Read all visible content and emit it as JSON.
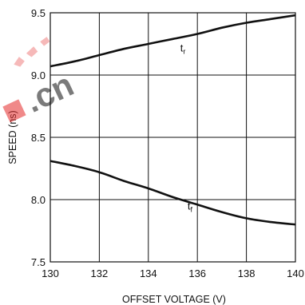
{
  "chart_data": {
    "type": "line",
    "title": "",
    "xlabel": "OFFSET VOLTAGE (V)",
    "ylabel": "SPEED (ns)",
    "xlim": [
      130,
      140
    ],
    "ylim": [
      7.5,
      9.5
    ],
    "x_ticks": [
      "130",
      "132",
      "134",
      "136",
      "138",
      "140"
    ],
    "y_ticks": [
      "7.5",
      "8.0",
      "8.5",
      "9.0",
      "9.5"
    ],
    "grid": true,
    "series": [
      {
        "name": "tr",
        "label_main": "t",
        "label_sub": "r",
        "label_at": [
          135.3,
          9.19
        ],
        "points": [
          [
            130,
            9.07
          ],
          [
            131,
            9.11
          ],
          [
            132,
            9.16
          ],
          [
            133,
            9.21
          ],
          [
            134,
            9.25
          ],
          [
            135,
            9.29
          ],
          [
            136,
            9.33
          ],
          [
            137,
            9.38
          ],
          [
            138,
            9.42
          ],
          [
            139,
            9.45
          ],
          [
            140,
            9.48
          ]
        ]
      },
      {
        "name": "tf",
        "label_main": "t",
        "label_sub": "f",
        "label_at": [
          135.6,
          7.92
        ],
        "points": [
          [
            130,
            8.31
          ],
          [
            131,
            8.27
          ],
          [
            132,
            8.22
          ],
          [
            133,
            8.15
          ],
          [
            134,
            8.09
          ],
          [
            135,
            8.02
          ],
          [
            136,
            7.96
          ],
          [
            137,
            7.9
          ],
          [
            138,
            7.85
          ],
          [
            139,
            7.82
          ],
          [
            140,
            7.8
          ]
        ]
      }
    ]
  },
  "watermark": {
    "text": ".cn",
    "color": "#e52a2a"
  }
}
